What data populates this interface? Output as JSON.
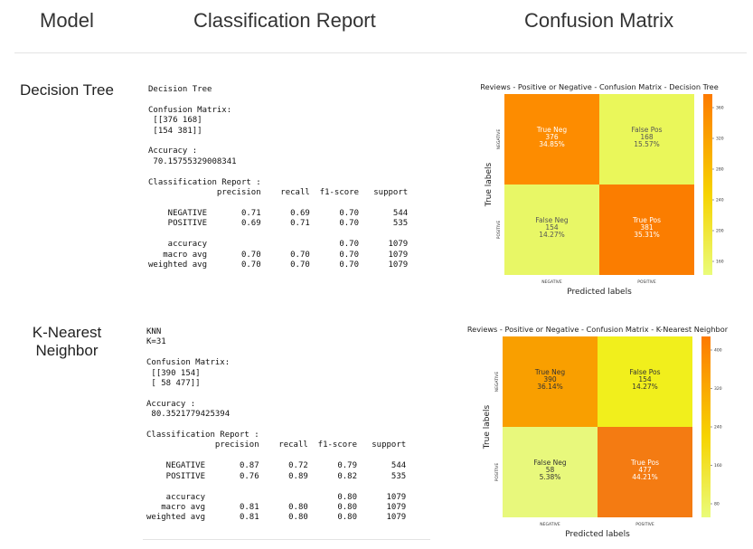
{
  "headers": {
    "model": "Model",
    "report": "Classification Report",
    "matrix": "Confusion Matrix"
  },
  "rows": [
    {
      "model": "Decision Tree",
      "report_lines": [
        "Decision Tree",
        "",
        "Confusion Matrix:",
        " [[376 168]",
        " [154 381]]",
        "",
        "Accuracy :",
        " 70.15755329008341",
        "",
        "Classification Report :",
        "              precision    recall  f1-score   support",
        "",
        "    NEGATIVE       0.71      0.69      0.70       544",
        "    POSITIVE       0.69      0.71      0.70       535",
        "",
        "    accuracy                           0.70      1079",
        "   macro avg       0.70      0.70      0.70      1079",
        "weighted avg       0.70      0.70      0.70      1079"
      ],
      "matrix": {
        "title": "Reviews - Positive or Negative - Confusion Matrix - Decision Tree",
        "xlabel": "Predicted labels",
        "ylabel": "True labels",
        "xticks": [
          "NEGATIVE",
          "POSITIVE"
        ],
        "yticks": [
          "NEGATIVE",
          "POSITIVE"
        ],
        "cells": [
          [
            {
              "label": "True Neg",
              "count": "376",
              "pct": "34.85%",
              "color": "#fd8c00",
              "text": "#ffffff"
            },
            {
              "label": "False Pos",
              "count": "168",
              "pct": "15.57%",
              "color": "#eaf75a",
              "text": "#555555"
            }
          ],
          [
            {
              "label": "False Neg",
              "count": "154",
              "pct": "14.27%",
              "color": "#e8f766",
              "text": "#555555"
            },
            {
              "label": "True Pos",
              "count": "381",
              "pct": "35.31%",
              "color": "#fb7d00",
              "text": "#ffffff"
            }
          ]
        ],
        "colorbar_ticks": [
          "360",
          "320",
          "280",
          "240",
          "200",
          "160"
        ]
      }
    },
    {
      "model": "K-Nearest Neighbor",
      "report_lines": [
        "KNN",
        "K=31",
        "",
        "Confusion Matrix:",
        " [[390 154]",
        " [ 58 477]]",
        "",
        "Accuracy :",
        " 80.3521779425394",
        "",
        "Classification Report :",
        "              precision    recall  f1-score   support",
        "",
        "    NEGATIVE       0.87      0.72      0.79       544",
        "    POSITIVE       0.76      0.89      0.82       535",
        "",
        "    accuracy                           0.80      1079",
        "   macro avg       0.81      0.80      0.80      1079",
        "weighted avg       0.81      0.80      0.80      1079"
      ],
      "matrix": {
        "title": "Reviews - Positive or Negative - Confusion Matrix - K-Nearest Neighbor",
        "xlabel": "Predicted labels",
        "ylabel": "True labels",
        "xticks": [
          "NEGATIVE",
          "POSITIVE"
        ],
        "yticks": [
          "NEGATIVE",
          "POSITIVE"
        ],
        "cells": [
          [
            {
              "label": "True Neg",
              "count": "390",
              "pct": "36.14%",
              "color": "#f99f00",
              "text": "#333333"
            },
            {
              "label": "False Pos",
              "count": "154",
              "pct": "14.27%",
              "color": "#f1ef1c",
              "text": "#333333"
            }
          ],
          [
            {
              "label": "False Neg",
              "count": "58",
              "pct": "5.38%",
              "color": "#e8f87c",
              "text": "#333333"
            },
            {
              "label": "True Pos",
              "count": "477",
              "pct": "44.21%",
              "color": "#f47b12",
              "text": "#ffffff"
            }
          ]
        ],
        "colorbar_ticks": [
          "400",
          "320",
          "240",
          "160",
          "80"
        ]
      }
    }
  ],
  "colors": {
    "colorbar_top": "#fd7a00",
    "colorbar_mid": "#f6d300",
    "colorbar_bottom": "#eafc7a"
  }
}
